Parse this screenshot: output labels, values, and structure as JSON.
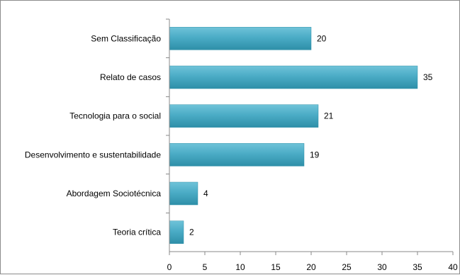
{
  "chart_data": {
    "type": "bar",
    "orientation": "horizontal",
    "categories": [
      "Sem Classificação",
      "Relato de casos",
      "Tecnologia para o social",
      "Desenvolvimento e sustentabilidade",
      "Abordagem Sociotécnica",
      "Teoria crítica"
    ],
    "values": [
      20,
      35,
      21,
      19,
      4,
      2
    ],
    "data_labels": [
      "20",
      "35",
      "21",
      "19",
      "4",
      "2"
    ],
    "x_ticks": [
      "0",
      "5",
      "10",
      "15",
      "20",
      "25",
      "30",
      "35",
      "40"
    ],
    "xlim": [
      0,
      40
    ],
    "title": "",
    "xlabel": "",
    "ylabel": "",
    "grid": false,
    "legend": "none",
    "bar_color": "#4bacc6",
    "bar_color_light": "#6fc3d9",
    "bar_color_dark": "#2e8fa8"
  }
}
